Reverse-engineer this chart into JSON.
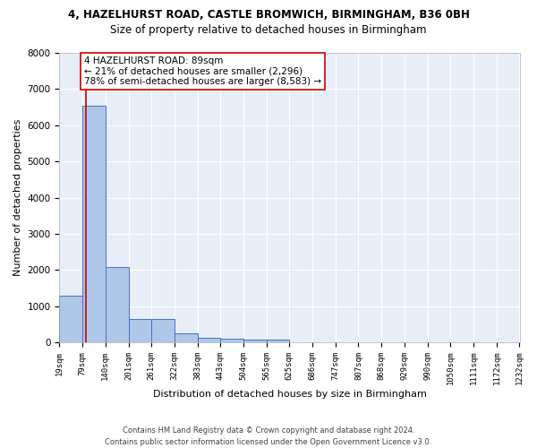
{
  "title1": "4, HAZELHURST ROAD, CASTLE BROMWICH, BIRMINGHAM, B36 0BH",
  "title2": "Size of property relative to detached houses in Birmingham",
  "xlabel": "Distribution of detached houses by size in Birmingham",
  "ylabel": "Number of detached properties",
  "footer": "Contains HM Land Registry data © Crown copyright and database right 2024.\nContains public sector information licensed under the Open Government Licence v3.0.",
  "bin_edges": [
    19,
    79,
    140,
    201,
    261,
    322,
    383,
    443,
    504,
    565,
    625,
    686,
    747,
    807,
    868,
    929,
    990,
    1050,
    1111,
    1172,
    1232
  ],
  "bar_heights": [
    1300,
    6550,
    2075,
    650,
    650,
    250,
    130,
    100,
    75,
    75,
    0,
    0,
    0,
    0,
    0,
    0,
    0,
    0,
    0,
    0
  ],
  "bar_color": "#aec6e8",
  "bar_edge_color": "#4472c4",
  "property_line_x": 89,
  "property_line_color": "#cc0000",
  "annotation_text": "4 HAZELHURST ROAD: 89sqm\n← 21% of detached houses are smaller (2,296)\n78% of semi-detached houses are larger (8,583) →",
  "annotation_box_color": "#ffffff",
  "annotation_box_edge_color": "#cc0000",
  "background_color": "#e8eef7",
  "grid_color": "#ffffff",
  "ylim": [
    0,
    8000
  ],
  "yticks": [
    0,
    1000,
    2000,
    3000,
    4000,
    5000,
    6000,
    7000,
    8000
  ],
  "tick_labels": [
    "19sqm",
    "79sqm",
    "140sqm",
    "201sqm",
    "261sqm",
    "322sqm",
    "383sqm",
    "443sqm",
    "504sqm",
    "565sqm",
    "625sqm",
    "686sqm",
    "747sqm",
    "807sqm",
    "868sqm",
    "929sqm",
    "990sqm",
    "1050sqm",
    "1111sqm",
    "1172sqm",
    "1232sqm"
  ],
  "title1_fontsize": 8.5,
  "title2_fontsize": 8.5,
  "xlabel_fontsize": 8,
  "ylabel_fontsize": 8,
  "tick_fontsize": 6.5,
  "ytick_fontsize": 7.5,
  "annotation_fontsize": 7.5,
  "footer_fontsize": 6
}
